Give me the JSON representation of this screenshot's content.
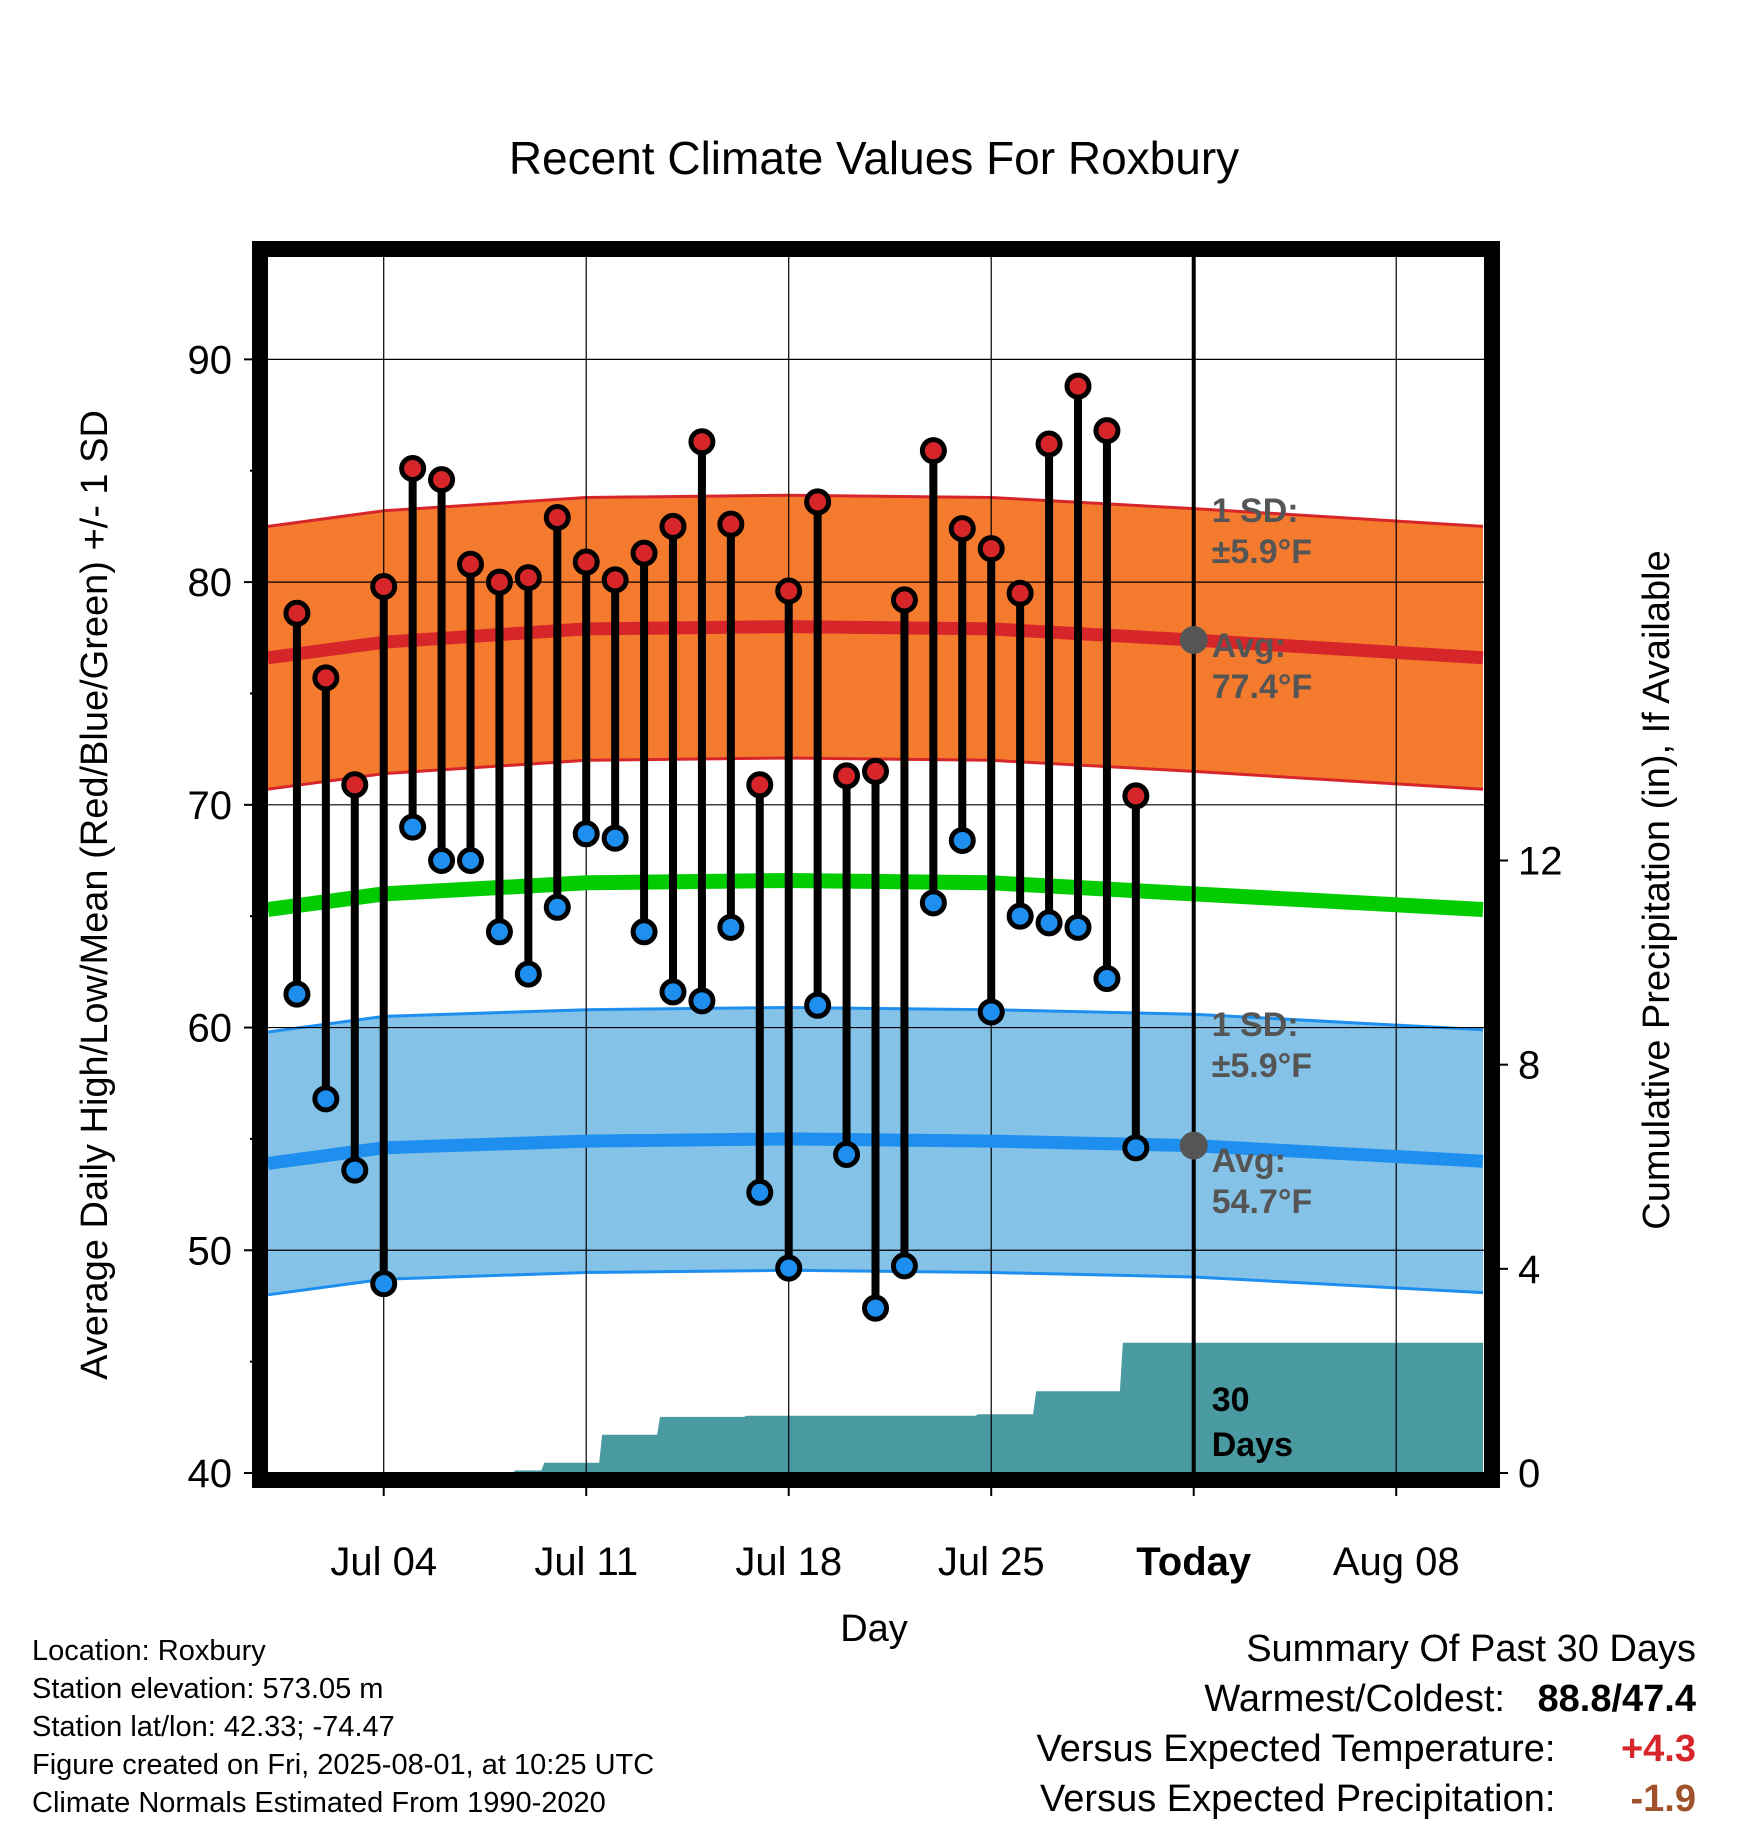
{
  "colors": {
    "high_band": "#f47a2e",
    "high_line": "#d7262a",
    "low_band": "#85c2e8",
    "low_line": "#1e8fee",
    "mean_line": "#00cc00",
    "precip": "#4a9aa2",
    "high_dot": "#d7262a",
    "low_dot": "#1e8fee",
    "annotation": "#555555",
    "warm_anomaly": "#d7262a",
    "precip_anomaly": "#a0522d"
  },
  "chart_data": {
    "type": "line",
    "title": "Recent Climate Values For Roxbury",
    "xlabel": "Day",
    "ylabel": "Average Daily High/Low/Mean (Red/Blue/Green) +/- 1 SD",
    "y2label": "Cumulative Precipitation (in), If Available",
    "ylim": [
      40,
      95
    ],
    "y2lim": [
      0,
      24
    ],
    "yticks": [
      40,
      50,
      60,
      70,
      80,
      90
    ],
    "y2ticks": [
      0,
      4,
      8,
      12
    ],
    "xlim": [
      "2025-06-30",
      "2025-08-11"
    ],
    "xticks": [
      {
        "date": "2025-07-04",
        "label": "Jul 04"
      },
      {
        "date": "2025-07-11",
        "label": "Jul 11"
      },
      {
        "date": "2025-07-18",
        "label": "Jul 18"
      },
      {
        "date": "2025-07-25",
        "label": "Jul 25"
      },
      {
        "date": "2025-08-01",
        "label": "Today"
      },
      {
        "date": "2025-08-08",
        "label": "Aug 08"
      }
    ],
    "today": "2025-08-01",
    "normals": {
      "dates": [
        "2025-06-30",
        "2025-07-04",
        "2025-07-11",
        "2025-07-18",
        "2025-07-25",
        "2025-08-01",
        "2025-08-11"
      ],
      "avg_high": [
        76.6,
        77.3,
        77.9,
        78.0,
        77.9,
        77.4,
        76.6
      ],
      "avg_low": [
        53.9,
        54.6,
        54.9,
        55.0,
        54.9,
        54.7,
        54.0
      ],
      "mean": [
        65.3,
        66.0,
        66.5,
        66.6,
        66.5,
        66.0,
        65.3
      ],
      "sd_high": 5.9,
      "sd_low": 5.9
    },
    "series": [
      {
        "name": "High",
        "dates": [
          "2025-07-01",
          "2025-07-02",
          "2025-07-03",
          "2025-07-04",
          "2025-07-05",
          "2025-07-06",
          "2025-07-07",
          "2025-07-08",
          "2025-07-09",
          "2025-07-10",
          "2025-07-11",
          "2025-07-12",
          "2025-07-13",
          "2025-07-14",
          "2025-07-15",
          "2025-07-16",
          "2025-07-17",
          "2025-07-18",
          "2025-07-19",
          "2025-07-20",
          "2025-07-21",
          "2025-07-22",
          "2025-07-23",
          "2025-07-24",
          "2025-07-25",
          "2025-07-26",
          "2025-07-27",
          "2025-07-28",
          "2025-07-29",
          "2025-07-30",
          "2025-07-31"
        ],
        "values": [
          78.6,
          75.7,
          70.9,
          79.8,
          85.1,
          84.6,
          80.8,
          80.0,
          80.2,
          82.9,
          80.9,
          80.1,
          81.3,
          82.5,
          86.3,
          82.6,
          70.9,
          79.6,
          83.6,
          71.3,
          71.5,
          79.2,
          85.9,
          82.4,
          81.5,
          79.5,
          86.2,
          88.8,
          86.8,
          70.4,
          null
        ]
      },
      {
        "name": "Low",
        "dates": [
          "2025-07-01",
          "2025-07-02",
          "2025-07-03",
          "2025-07-04",
          "2025-07-05",
          "2025-07-06",
          "2025-07-07",
          "2025-07-08",
          "2025-07-09",
          "2025-07-10",
          "2025-07-11",
          "2025-07-12",
          "2025-07-13",
          "2025-07-14",
          "2025-07-15",
          "2025-07-16",
          "2025-07-17",
          "2025-07-18",
          "2025-07-19",
          "2025-07-20",
          "2025-07-21",
          "2025-07-22",
          "2025-07-23",
          "2025-07-24",
          "2025-07-25",
          "2025-07-26",
          "2025-07-27",
          "2025-07-28",
          "2025-07-29",
          "2025-07-30",
          "2025-07-31"
        ],
        "values": [
          61.5,
          56.8,
          53.6,
          48.5,
          69.0,
          67.5,
          67.5,
          64.3,
          62.4,
          65.4,
          68.7,
          68.5,
          64.3,
          61.6,
          61.2,
          64.5,
          52.6,
          49.2,
          61.0,
          54.3,
          47.4,
          49.3,
          65.6,
          68.4,
          60.7,
          65.0,
          64.7,
          64.5,
          62.2,
          54.6,
          null
        ]
      }
    ],
    "precip": {
      "dates": [
        "2025-07-01",
        "2025-07-02",
        "2025-07-03",
        "2025-07-04",
        "2025-07-05",
        "2025-07-06",
        "2025-07-07",
        "2025-07-08",
        "2025-07-09",
        "2025-07-10",
        "2025-07-11",
        "2025-07-12",
        "2025-07-13",
        "2025-07-14",
        "2025-07-15",
        "2025-07-16",
        "2025-07-17",
        "2025-07-18",
        "2025-07-19",
        "2025-07-20",
        "2025-07-21",
        "2025-07-22",
        "2025-07-23",
        "2025-07-24",
        "2025-07-25",
        "2025-07-26",
        "2025-07-27",
        "2025-07-28",
        "2025-07-29",
        "2025-07-30",
        "2025-07-31"
      ],
      "cumulative": [
        0,
        0,
        0,
        0,
        0,
        0,
        0,
        0,
        0.05,
        0.2,
        0.2,
        0.75,
        0.75,
        1.1,
        1.1,
        1.1,
        1.12,
        1.12,
        1.12,
        1.12,
        1.12,
        1.12,
        1.12,
        1.12,
        1.15,
        1.15,
        1.6,
        1.6,
        1.6,
        2.55,
        2.55
      ],
      "last_value": 2.55
    },
    "annotations": {
      "high_sd_label": "1 SD:",
      "high_sd_value": "±5.9°F",
      "high_avg_label": "Avg:",
      "high_avg_value": "77.4°F",
      "low_sd_label": "1 SD:",
      "low_sd_value": "±5.9°F",
      "low_avg_label": "Avg:",
      "low_avg_value": "54.7°F",
      "days_line1": "30",
      "days_line2": "Days"
    },
    "grid": true
  },
  "footer": {
    "location": "Location: Roxbury",
    "elevation": "Station elevation: 573.05 m",
    "latlon": "Station lat/lon: 42.33; -74.47",
    "created": "Figure created on Fri, 2025-08-01, at 10:25 UTC",
    "normals": "Climate Normals Estimated From 1990-2020"
  },
  "summary": {
    "heading": "Summary Of Past 30 Days",
    "warm_cold_label": "Warmest/Coldest:",
    "warm_cold_value": "88.8/47.4",
    "temp_label": "Versus Expected Temperature:",
    "temp_value": "+4.3",
    "precip_label": "Versus Expected Precipitation:",
    "precip_value": "-1.9"
  }
}
